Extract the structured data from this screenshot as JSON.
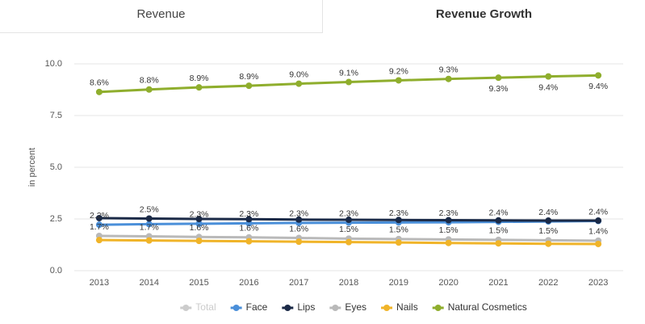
{
  "tabs": [
    "Revenue",
    "Revenue Growth"
  ],
  "chart_data": {
    "type": "line",
    "y_label": "in percent",
    "categories": [
      "2013",
      "2014",
      "2015",
      "2016",
      "2017",
      "2018",
      "2019",
      "2020",
      "2021",
      "2022",
      "2023"
    ],
    "ylim": [
      0,
      10
    ],
    "yticks": [
      {
        "value": 0,
        "label": "0.0"
      },
      2.5,
      {
        "value": 5,
        "label": "5.0"
      },
      7.5,
      {
        "value": 10,
        "label": "10.0"
      }
    ],
    "grid": true,
    "legend": "bottom",
    "series": [
      {
        "name": "Total",
        "color": "#cccccc",
        "visible": false,
        "values": [
          null,
          null,
          null,
          null,
          null,
          null,
          null,
          null,
          null,
          null,
          null
        ]
      },
      {
        "name": "Face",
        "color": "#4a8fd9",
        "values": [
          2.22,
          2.25,
          2.27,
          2.29,
          2.31,
          2.32,
          2.33,
          2.34,
          2.36,
          2.38,
          2.4
        ],
        "value_labels": [
          "2.2%",
          null,
          "2.3%",
          "2.3%",
          "2.3%",
          "2.3%",
          "2.3%",
          "2.3%",
          "2.4%",
          "2.4%",
          "2.4%"
        ]
      },
      {
        "name": "Lips",
        "color": "#1b2a47",
        "values": [
          2.54,
          2.52,
          2.5,
          2.49,
          2.47,
          2.46,
          2.45,
          2.44,
          2.43,
          2.42,
          2.42
        ],
        "value_labels": [
          null,
          "2.5%",
          null,
          null,
          null,
          null,
          null,
          null,
          null,
          null,
          null
        ]
      },
      {
        "name": "Eyes",
        "color": "#b9b9b9",
        "values": [
          1.68,
          1.66,
          1.63,
          1.61,
          1.58,
          1.55,
          1.53,
          1.51,
          1.49,
          1.47,
          1.45
        ],
        "value_labels": [
          "1.7%",
          "1.7%",
          "1.6%",
          "1.6%",
          "1.6%",
          "1.5%",
          "1.5%",
          "1.5%",
          "1.5%",
          "1.5%",
          "1.4%"
        ]
      },
      {
        "name": "Nails",
        "color": "#f0b429",
        "values": [
          1.48,
          1.46,
          1.44,
          1.42,
          1.4,
          1.38,
          1.36,
          1.34,
          1.32,
          1.3,
          1.29
        ]
      },
      {
        "name": "Natural Cosmetics",
        "color": "#8fae2d",
        "values": [
          8.64,
          8.76,
          8.86,
          8.94,
          9.04,
          9.12,
          9.2,
          9.27,
          9.33,
          9.39,
          9.44
        ],
        "value_labels": [
          "8.6%",
          "8.8%",
          "8.9%",
          "8.9%",
          "9.0%",
          "9.1%",
          "9.2%",
          "9.3%",
          "9.3%",
          "9.4%",
          "9.4%"
        ]
      }
    ]
  }
}
